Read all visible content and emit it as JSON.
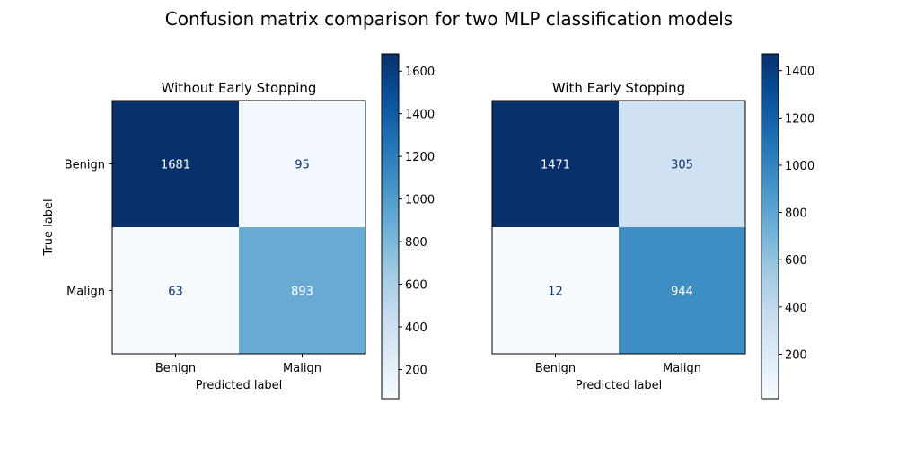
{
  "figure": {
    "suptitle": "Confusion matrix comparison for two MLP classification models"
  },
  "colormap": {
    "name": "Blues",
    "stops": [
      "#f7fbff",
      "#deebf7",
      "#c6dbef",
      "#9ecae1",
      "#6baed6",
      "#4292c6",
      "#2171b5",
      "#08519c",
      "#08306b"
    ],
    "text_light": "#ffffff",
    "text_dark": "#08306b"
  },
  "chart_data": [
    {
      "type": "heatmap",
      "title": "Without Early Stopping",
      "xlabel": "Predicted label",
      "ylabel": "True label",
      "x_categories": [
        "Benign",
        "Malign"
      ],
      "y_categories": [
        "Benign",
        "Malign"
      ],
      "values": [
        [
          1681,
          95
        ],
        [
          63,
          893
        ]
      ],
      "color_range": [
        63,
        1681
      ],
      "colorbar_ticks": [
        200,
        400,
        600,
        800,
        1000,
        1200,
        1400,
        1600
      ]
    },
    {
      "type": "heatmap",
      "title": "With Early Stopping",
      "xlabel": "Predicted label",
      "ylabel": "",
      "x_categories": [
        "Benign",
        "Malign"
      ],
      "y_categories": [],
      "values": [
        [
          1471,
          305
        ],
        [
          12,
          944
        ]
      ],
      "color_range": [
        12,
        1471
      ],
      "colorbar_ticks": [
        200,
        400,
        600,
        800,
        1000,
        1200,
        1400
      ]
    }
  ]
}
